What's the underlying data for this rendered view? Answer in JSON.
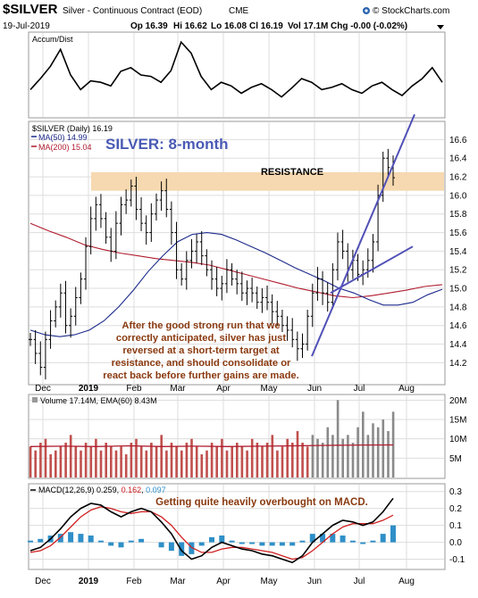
{
  "header": {
    "ticker": "$SILVER",
    "name": "Silver - Continuous Contract (EOD)",
    "exchange": "CME",
    "date": "19-Jul-2019",
    "open": "Op 16.39",
    "high": "Hi 16.62",
    "low": "Lo 16.08",
    "close": "Cl 16.19",
    "volume": "Vol 17.1M",
    "change": "Chg -0.00 (-0.02%)",
    "brand": "© StockCharts.com"
  },
  "panels": {
    "accum": {
      "label": "Accum/Dist"
    },
    "price": {
      "legend_series": "$SILVER (Daily) 16.19",
      "legend_ma50": "MA(50) 14.99",
      "legend_ma200": "MA(200) 15.04",
      "title": "SILVER: 8-month",
      "resistance_label": "RESISTANCE",
      "note_lines": [
        "After the good strong run that we",
        "correctly anticipated, silver has just",
        "reversed at a short-term target at",
        "resistance, and should consolidate or",
        "react back before further gains are made."
      ],
      "y_ticks": [
        "16.6",
        "16.4",
        "16.2",
        "16.0",
        "15.8",
        "15.6",
        "15.4",
        "15.2",
        "15.0",
        "14.8",
        "14.6",
        "14.4",
        "14.2"
      ],
      "x_ticks": [
        "Dec",
        "2019",
        "Feb",
        "Mar",
        "Apr",
        "May",
        "Jun",
        "Jul",
        "Aug"
      ]
    },
    "volume": {
      "legend": "Volume 17.14M, EMA(60) 8.43M",
      "y_ticks": [
        "20M",
        "15M",
        "10M",
        "5M"
      ]
    },
    "macd": {
      "legend_prefix": "MACD(12,26,9)",
      "macd_value": "0.259",
      "signal_value": "0.162",
      "hist_value": "0.097",
      "note": "Getting quite heavily overbought on MACD.",
      "y_ticks": [
        "0.3",
        "0.2",
        "0.1",
        "0.0",
        "-0.1"
      ],
      "x_ticks": [
        "Dec",
        "2019",
        "Feb",
        "Mar",
        "Apr",
        "May",
        "Jun",
        "Jul",
        "Aug"
      ]
    }
  },
  "colors": {
    "price": "#000000",
    "ma50": "#1c2a8c",
    "ma200": "#b01c2e",
    "trend": "#5050b8",
    "resistance": "#f6d9b0",
    "title": "#4a5ab4",
    "annotation": "#8a3a10",
    "volume": "#c0504d",
    "ema": "#b01c2e",
    "histogram": "#2f8fc8",
    "macd": "#000000",
    "signal": "#d02020",
    "grid": "#dddddd"
  },
  "chart_data": [
    {
      "type": "line",
      "name": "Accum/Dist",
      "x_range": [
        "2018-11-21",
        "2019-07-19"
      ],
      "values": [
        0.3,
        0.45,
        0.62,
        0.85,
        0.5,
        0.3,
        0.42,
        0.4,
        0.35,
        0.55,
        0.6,
        0.5,
        0.48,
        0.4,
        0.56,
        0.95,
        0.8,
        0.48,
        0.3,
        0.4,
        0.35,
        0.25,
        0.33,
        0.38,
        0.3,
        0.2,
        0.32,
        0.45,
        0.4,
        0.3,
        0.33,
        0.38,
        0.3,
        0.25,
        0.35,
        0.4,
        0.3,
        0.22,
        0.35,
        0.45,
        0.6,
        0.4
      ]
    },
    {
      "type": "line",
      "name": "$SILVER (Daily)",
      "x_range": [
        "2018-11-21",
        "2019-07-19"
      ],
      "ylim": [
        14.05,
        16.7
      ],
      "resistance_zone": [
        16.05,
        16.25
      ],
      "series": [
        {
          "name": "$SILVER (Daily)",
          "values": [
            14.45,
            14.3,
            14.15,
            14.45,
            14.65,
            14.8,
            14.95,
            14.6,
            14.7,
            14.9,
            15.1,
            15.45,
            15.75,
            15.9,
            15.75,
            15.55,
            15.4,
            15.7,
            15.9,
            15.95,
            16.1,
            15.85,
            15.7,
            15.6,
            15.8,
            15.95,
            16.05,
            15.85,
            15.6,
            15.2,
            15.1,
            15.3,
            15.4,
            15.5,
            15.35,
            15.2,
            15.1,
            15.0,
            15.05,
            15.2,
            15.1,
            15.05,
            14.95,
            15.0,
            14.95,
            14.85,
            14.9,
            14.85,
            14.75,
            14.7,
            14.6,
            14.55,
            14.45,
            14.35,
            14.4,
            14.7,
            14.95,
            15.1,
            14.95,
            14.85,
            15.2,
            15.5,
            15.4,
            15.2,
            15.3,
            15.15,
            15.2,
            15.3,
            15.5,
            16.0,
            16.4,
            16.3,
            16.19
          ]
        },
        {
          "name": "MA(50)",
          "values": [
            14.55,
            14.5,
            14.48,
            14.5,
            14.55,
            14.65,
            14.8,
            14.98,
            15.18,
            15.35,
            15.5,
            15.58,
            15.6,
            15.58,
            15.52,
            15.45,
            15.38,
            15.3,
            15.22,
            15.15,
            15.08,
            15.0,
            14.95,
            14.88,
            14.82,
            14.82,
            14.85,
            14.93,
            14.99
          ]
        },
        {
          "name": "MA(200)",
          "values": [
            15.7,
            15.62,
            15.55,
            15.47,
            15.42,
            15.38,
            15.35,
            15.32,
            15.3,
            15.28,
            15.25,
            15.2,
            15.15,
            15.1,
            15.05,
            15.0,
            14.96,
            14.92,
            14.9,
            14.92,
            14.95,
            14.98,
            15.02,
            15.04
          ]
        }
      ]
    },
    {
      "type": "bar",
      "name": "Volume",
      "x_range": [
        "2018-11-21",
        "2019-07-19"
      ],
      "ylim": [
        0,
        21
      ],
      "values": [
        8,
        7,
        9,
        10,
        6,
        7,
        8,
        9,
        11,
        8,
        7,
        9,
        8,
        10,
        7,
        9,
        8,
        7,
        8,
        6,
        9,
        10,
        8,
        7,
        9,
        8,
        11,
        7,
        9,
        8,
        7,
        9,
        10,
        8,
        6,
        7,
        9,
        8,
        10,
        7,
        8,
        9,
        8,
        7,
        10,
        9,
        8,
        9,
        11,
        7,
        8,
        10,
        9,
        12,
        9,
        8,
        11,
        10,
        9,
        13,
        11,
        20,
        10,
        11,
        9,
        13,
        17,
        11,
        14,
        13,
        15,
        12,
        17
      ],
      "ema": [
        8.0,
        8.1,
        8.0,
        8.2,
        8.0,
        8.1,
        8.0,
        8.1,
        8.2,
        8.3,
        8.4,
        8.43
      ]
    },
    {
      "type": "line",
      "name": "MACD(12,26,9)",
      "x_range": [
        "2018-11-21",
        "2019-07-19"
      ],
      "ylim": [
        -0.15,
        0.33
      ],
      "series": [
        {
          "name": "MACD",
          "values": [
            -0.05,
            -0.03,
            0.02,
            0.08,
            0.15,
            0.2,
            0.23,
            0.22,
            0.18,
            0.15,
            0.18,
            0.2,
            0.18,
            0.12,
            0.05,
            -0.05,
            -0.1,
            -0.08,
            -0.03,
            0.0,
            -0.02,
            -0.04,
            -0.05,
            -0.07,
            -0.08,
            -0.1,
            -0.12,
            -0.08,
            0.0,
            0.05,
            0.1,
            0.13,
            0.12,
            0.1,
            0.12,
            0.18,
            0.26
          ]
        },
        {
          "name": "Signal",
          "values": [
            -0.06,
            -0.05,
            -0.02,
            0.03,
            0.09,
            0.15,
            0.19,
            0.21,
            0.2,
            0.18,
            0.17,
            0.18,
            0.18,
            0.15,
            0.1,
            0.03,
            -0.03,
            -0.06,
            -0.06,
            -0.04,
            -0.03,
            -0.03,
            -0.04,
            -0.05,
            -0.06,
            -0.08,
            -0.1,
            -0.09,
            -0.05,
            0.0,
            0.05,
            0.09,
            0.11,
            0.11,
            0.11,
            0.13,
            0.16
          ]
        }
      ]
    }
  ]
}
